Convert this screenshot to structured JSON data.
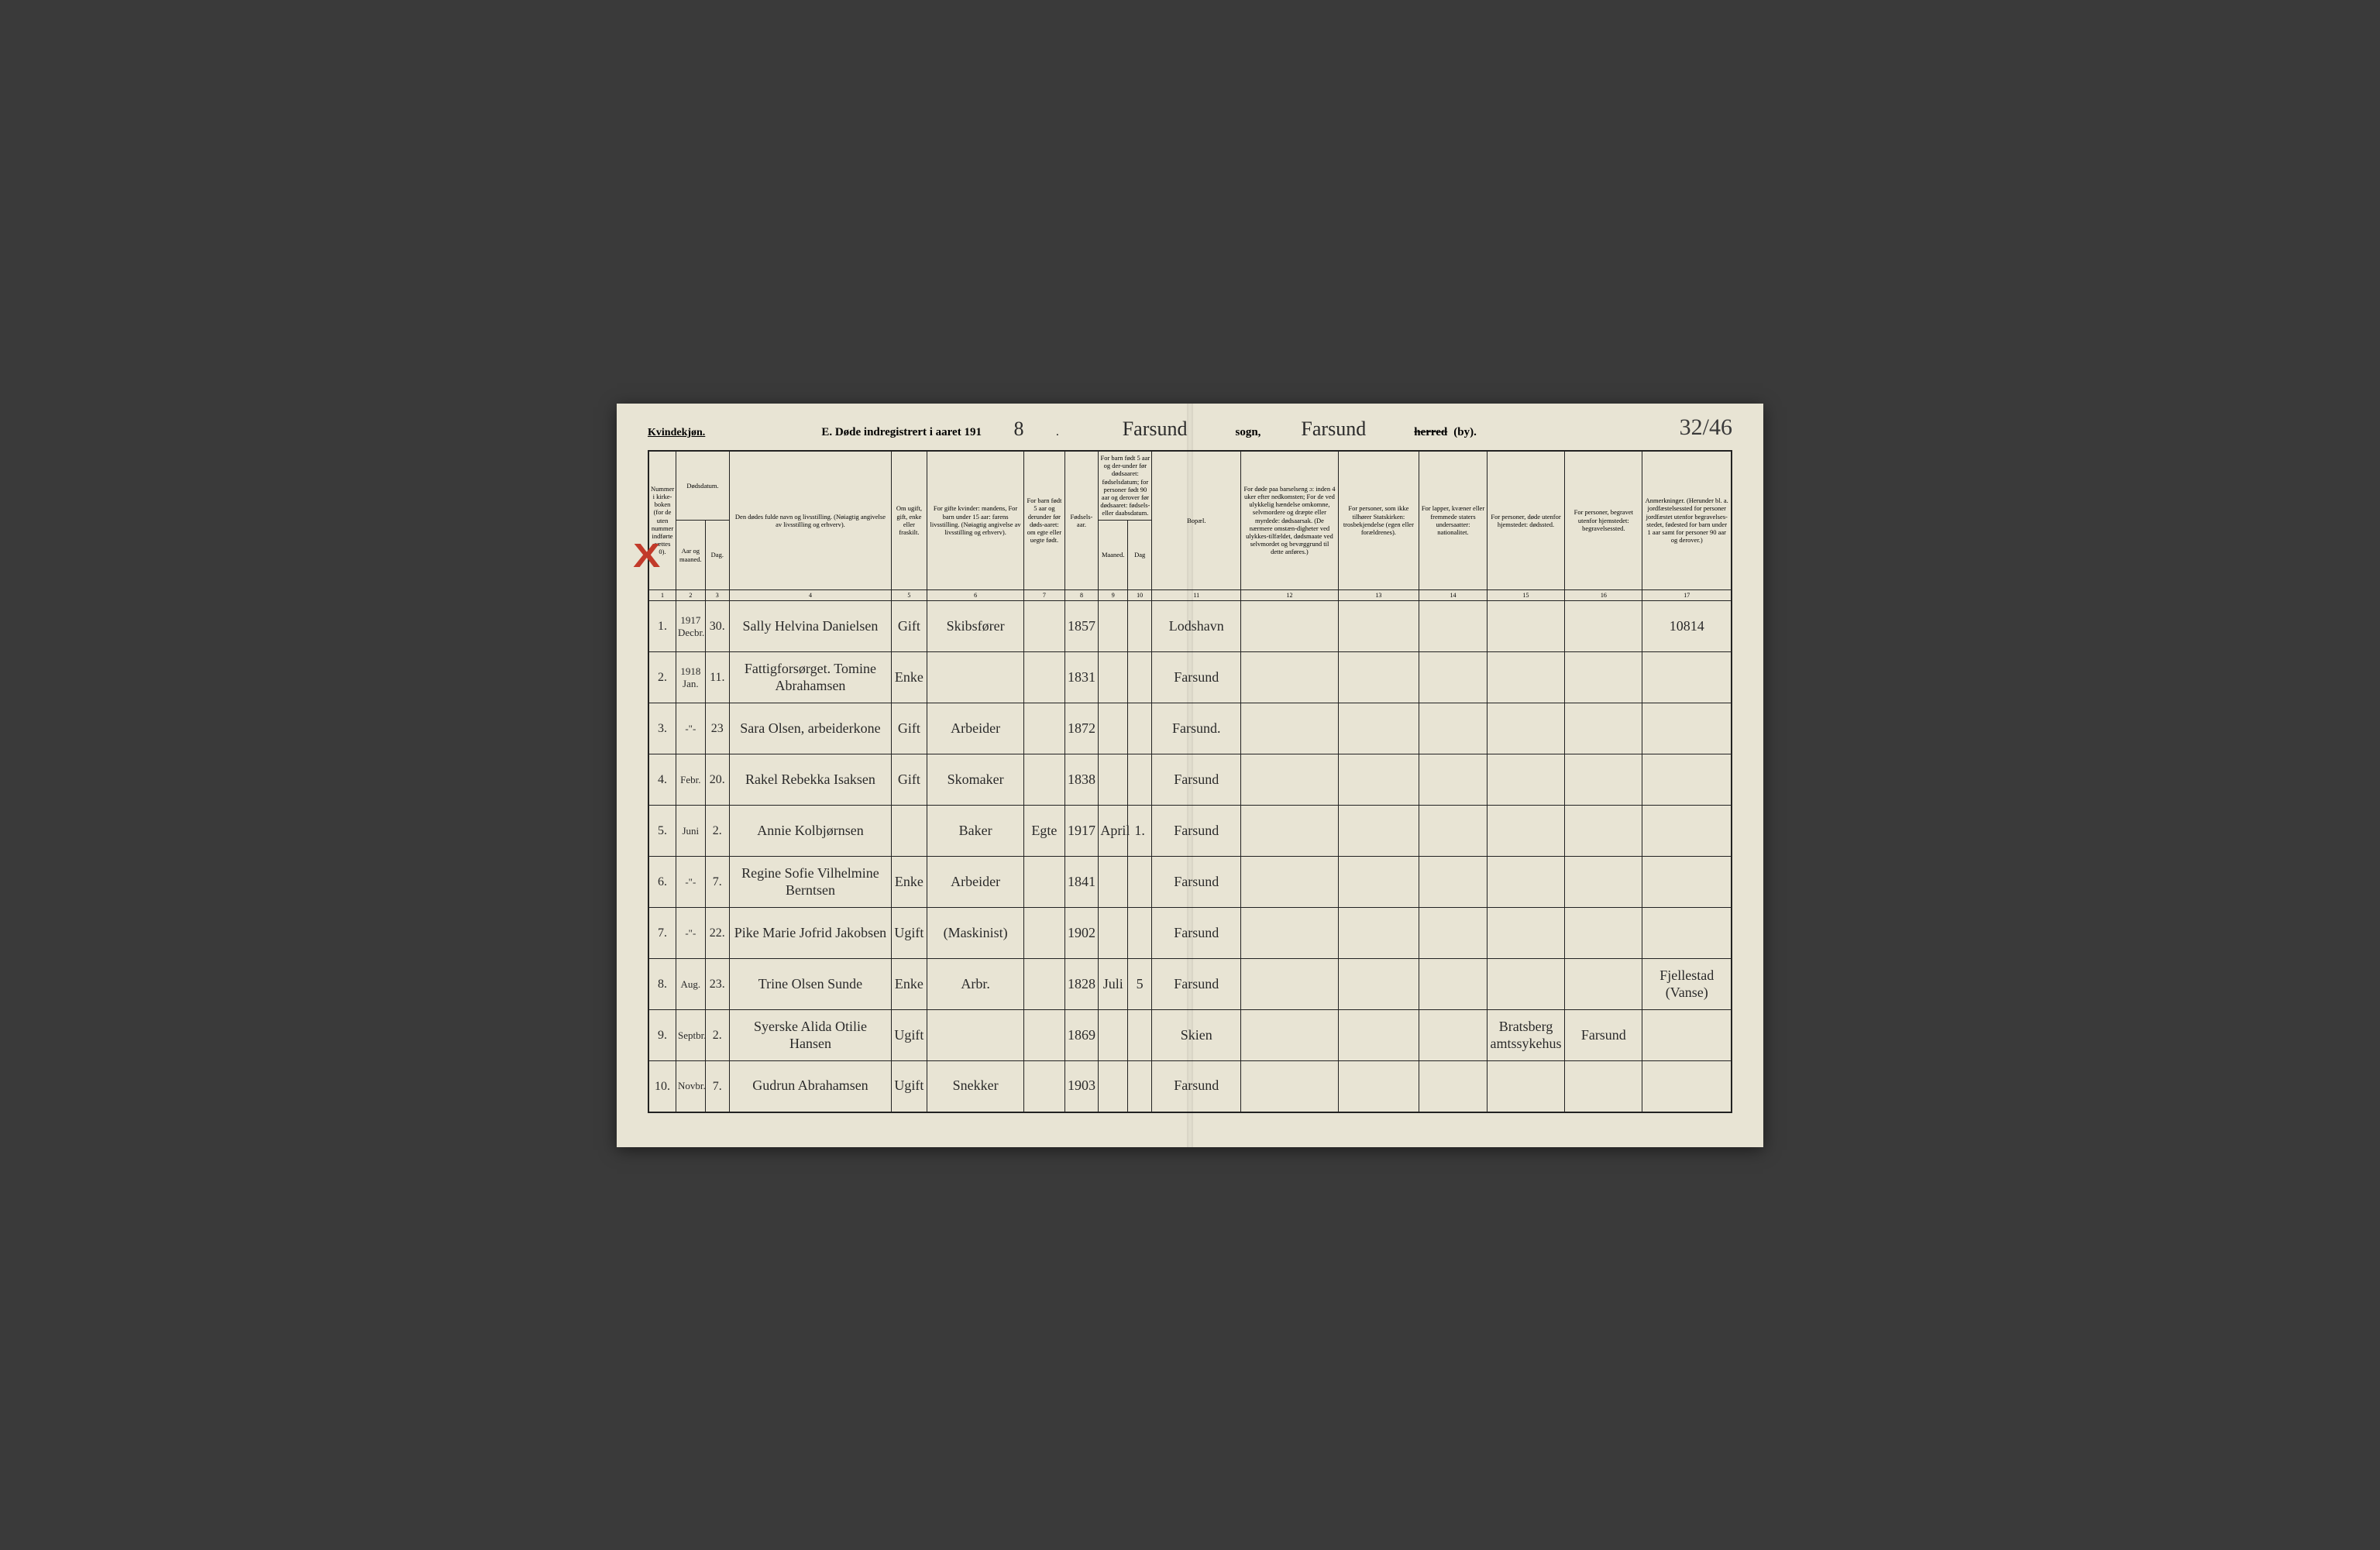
{
  "header": {
    "gender_label": "Kvindekjøn.",
    "title_prefix": "E.  Døde indregistrert i aaret 191",
    "year_suffix": "8",
    "sogn_value": "Farsund",
    "sogn_label": "sogn,",
    "herred_value": "Farsund",
    "herred_label_struck": "herred",
    "by_label": "(by).",
    "page_number": "32/46"
  },
  "columns": {
    "c1": "Nummer i kirke-boken (for de uten nummer indførte sættes 0).",
    "c2a": "Dødsdatum.",
    "c2b_aar": "Aar og maaned.",
    "c2b_dag": "Dag.",
    "c4": "Den dødes fulde navn og livsstilling.\n(Nøiagtig angivelse av livsstilling og erhverv).",
    "c5": "Om ugift, gift, enke eller fraskilt.",
    "c6": "For gifte kvinder: mandens,\nFor barn under 15 aar: farens livsstilling.\n(Nøiagtig angivelse av livsstilling og erhverv).",
    "c7": "For barn født 5 aar og derunder før døds-aaret: om egte eller uegte født.",
    "c8": "Fødsels-aar.",
    "c9": "For barn født 5 aar og der-under før dødsaaret: fødselsdatum; for personer født 90 aar og derover før dødsaaret: fødsels- eller daabsdatum.",
    "c9_m": "Maaned.",
    "c9_d": "Dag",
    "c11": "Bopæl.",
    "c12": "For døde paa barselseng ɔ: inden 4 uker efter nedkomsten; For de ved ulykkelig hændelse omkomne, selvmordere og dræpte eller myrdede: dødsaarsak. (De nærmere omstæn-digheter ved ulykkes-tilfældet, dødsmaate ved selvmordet og bevæggrund til dette anføres.)",
    "c13": "For personer, som ikke tilhører Statskirken: trosbekjendelse (egen eller forældrenes).",
    "c14": "For lapper, kvæner eller fremmede staters undersaatter: nationalitet.",
    "c15": "For personer, døde utenfor hjemstedet: dødssted.",
    "c16": "For personer, begravet utenfor hjemstedet: begravelsessted.",
    "c17": "Anmerkninger.\n(Herunder bl. a. jordfæstelsessted for personer jordfæstet utenfor begravelses-stedet, fødested for barn under 1 aar samt for personer 90 aar og derover.)"
  },
  "colnums": [
    "1",
    "2",
    "3",
    "4",
    "5",
    "6",
    "7",
    "8",
    "9",
    "10",
    "11",
    "12",
    "13",
    "14",
    "15",
    "16",
    "17"
  ],
  "rows": [
    {
      "num": "1.",
      "year": "1917 Decbr.",
      "day": "30.",
      "name": "Sally Helvina Danielsen",
      "status": "Gift",
      "occupation": "Skibsfører",
      "legit": "",
      "birth_year": "1857",
      "birth_m": "",
      "birth_d": "",
      "residence": "Lodshavn",
      "c12": "",
      "c13": "",
      "c14": "",
      "c15": "",
      "c16": "",
      "remarks": "10814"
    },
    {
      "num": "2.",
      "year": "1918 Jan.",
      "day": "11.",
      "name": "Fattigforsørget. Tomine Abrahamsen",
      "status": "Enke",
      "occupation": "",
      "legit": "",
      "birth_year": "1831",
      "birth_m": "",
      "birth_d": "",
      "residence": "Farsund",
      "c12": "",
      "c13": "",
      "c14": "",
      "c15": "",
      "c16": "",
      "remarks": ""
    },
    {
      "num": "3.",
      "year": "-\"-",
      "day": "23",
      "name": "Sara Olsen, arbeiderkone",
      "status": "Gift",
      "occupation": "Arbeider",
      "legit": "",
      "birth_year": "1872",
      "birth_m": "",
      "birth_d": "",
      "residence": "Farsund.",
      "c12": "",
      "c13": "",
      "c14": "",
      "c15": "",
      "c16": "",
      "remarks": ""
    },
    {
      "num": "4.",
      "year": "Febr.",
      "day": "20.",
      "name": "Rakel Rebekka Isaksen",
      "status": "Gift",
      "occupation": "Skomaker",
      "legit": "",
      "birth_year": "1838",
      "birth_m": "",
      "birth_d": "",
      "residence": "Farsund",
      "c12": "",
      "c13": "",
      "c14": "",
      "c15": "",
      "c16": "",
      "remarks": ""
    },
    {
      "num": "5.",
      "year": "Juni",
      "day": "2.",
      "name": "Annie Kolbjørnsen",
      "status": "",
      "occupation": "Baker",
      "legit": "Egte",
      "birth_year": "1917",
      "birth_m": "April",
      "birth_d": "1.",
      "residence": "Farsund",
      "c12": "",
      "c13": "",
      "c14": "",
      "c15": "",
      "c16": "",
      "remarks": ""
    },
    {
      "num": "6.",
      "year": "-\"-",
      "day": "7.",
      "name": "Regine Sofie Vilhelmine Berntsen",
      "status": "Enke",
      "occupation": "Arbeider",
      "legit": "",
      "birth_year": "1841",
      "birth_m": "",
      "birth_d": "",
      "residence": "Farsund",
      "c12": "",
      "c13": "",
      "c14": "",
      "c15": "",
      "c16": "",
      "remarks": ""
    },
    {
      "num": "7.",
      "year": "-\"-",
      "day": "22.",
      "name": "Pike Marie Jofrid Jakobsen",
      "status": "Ugift",
      "occupation": "(Maskinist)",
      "legit": "",
      "birth_year": "1902",
      "birth_m": "",
      "birth_d": "",
      "residence": "Farsund",
      "c12": "",
      "c13": "",
      "c14": "",
      "c15": "",
      "c16": "",
      "remarks": ""
    },
    {
      "num": "8.",
      "year": "Aug.",
      "day": "23.",
      "name": "Trine Olsen Sunde",
      "status": "Enke",
      "occupation": "Arbr.",
      "legit": "",
      "birth_year": "1828",
      "birth_m": "Juli",
      "birth_d": "5",
      "residence": "Farsund",
      "c12": "",
      "c13": "",
      "c14": "",
      "c15": "",
      "c16": "",
      "remarks": "Fjellestad (Vanse)"
    },
    {
      "num": "9.",
      "year": "Septbr.",
      "day": "2.",
      "name": "Syerske Alida Otilie Hansen",
      "status": "Ugift",
      "occupation": "",
      "legit": "",
      "birth_year": "1869",
      "birth_m": "",
      "birth_d": "",
      "residence": "Skien",
      "c12": "",
      "c13": "",
      "c14": "",
      "c15": "Bratsberg amtssykehus",
      "c16": "Farsund",
      "remarks": ""
    },
    {
      "num": "10.",
      "year": "Novbr.",
      "day": "7.",
      "name": "Gudrun Abrahamsen",
      "status": "Ugift",
      "occupation": "Snekker",
      "legit": "",
      "birth_year": "1903",
      "birth_m": "",
      "birth_d": "",
      "residence": "Farsund",
      "c12": "",
      "c13": "",
      "c14": "",
      "c15": "",
      "c16": "",
      "remarks": ""
    }
  ]
}
